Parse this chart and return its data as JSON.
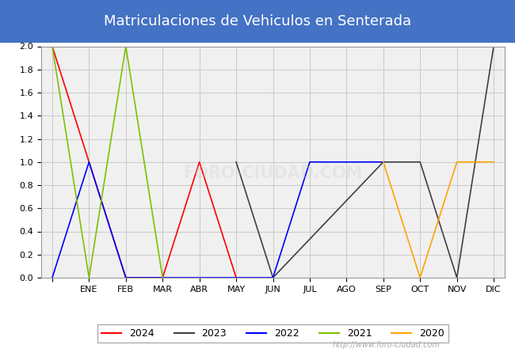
{
  "title": "Matriculaciones de Vehiculos en Senterada",
  "title_bg_color": "#4472c4",
  "title_text_color": "#ffffff",
  "months": [
    "",
    "ENE",
    "FEB",
    "MAR",
    "ABR",
    "MAY",
    "JUN",
    "JUL",
    "AGO",
    "SEP",
    "OCT",
    "NOV",
    "DIC"
  ],
  "ylim": [
    0,
    2.0
  ],
  "yticks": [
    0.0,
    0.2,
    0.4,
    0.6,
    0.8,
    1.0,
    1.2,
    1.4,
    1.6,
    1.8,
    2.0
  ],
  "series": {
    "2024": {
      "color": "#ff0000",
      "data": [
        [
          0,
          2
        ],
        [
          1,
          1
        ],
        [
          2,
          0
        ],
        [
          3,
          0
        ],
        [
          4,
          1
        ],
        [
          5,
          0
        ]
      ]
    },
    "2023": {
      "color": "#404040",
      "data": [
        [
          5,
          1
        ],
        [
          6,
          0
        ],
        [
          9,
          1
        ],
        [
          10,
          1
        ],
        [
          11,
          0
        ],
        [
          12,
          2
        ]
      ]
    },
    "2022": {
      "color": "#0000ff",
      "data": [
        [
          0,
          0
        ],
        [
          1,
          1
        ],
        [
          2,
          0
        ],
        [
          6,
          0
        ],
        [
          7,
          1
        ],
        [
          8,
          1
        ],
        [
          9,
          1
        ]
      ]
    },
    "2021": {
      "color": "#7fbf00",
      "data": [
        [
          0,
          2
        ],
        [
          1,
          0
        ],
        [
          2,
          2
        ],
        [
          3,
          0
        ]
      ]
    },
    "2020": {
      "color": "#ffa500",
      "data": [
        [
          9,
          1
        ],
        [
          10,
          0
        ],
        [
          11,
          1
        ],
        [
          12,
          1
        ]
      ]
    }
  },
  "legend_order": [
    "2024",
    "2023",
    "2022",
    "2021",
    "2020"
  ],
  "grid_color": "#cccccc",
  "plot_bg_color": "#f0f0f0",
  "watermark": "http://www.foro-ciudad.com"
}
